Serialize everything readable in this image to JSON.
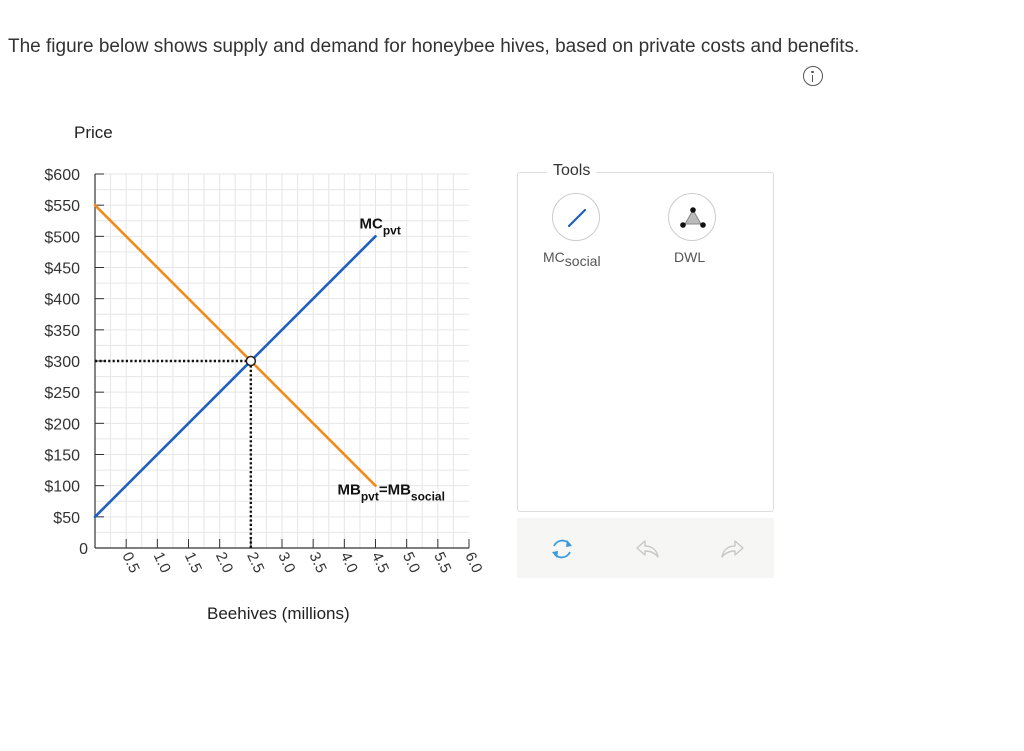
{
  "prompt": {
    "text": "The figure below shows supply and demand for honeybee hives, based on private costs and benefits."
  },
  "info_icon": "info-circle-icon",
  "chart_data": {
    "type": "line",
    "ylabel": "Price",
    "xlabel": "Beehives (millions)",
    "xlim": [
      0,
      6.0
    ],
    "ylim": [
      0,
      600
    ],
    "x_ticks": [
      0.5,
      1.0,
      1.5,
      2.0,
      2.5,
      3.0,
      3.5,
      4.0,
      4.5,
      5.0,
      5.5,
      6.0
    ],
    "x_tick_labels": [
      "0.5",
      "1.0",
      "1.5",
      "2.0",
      "2.5",
      "3.0",
      "3.5",
      "4.0",
      "4.5",
      "5.0",
      "5.5",
      "6.0"
    ],
    "y_ticks": [
      50,
      100,
      150,
      200,
      250,
      300,
      350,
      400,
      450,
      500,
      550,
      600
    ],
    "y_tick_labels": [
      "$50",
      "$100",
      "$150",
      "$200",
      "$250",
      "$300",
      "$350",
      "$400",
      "$450",
      "$500",
      "$550",
      "$600"
    ],
    "origin_label": "0",
    "grid": true,
    "series": [
      {
        "name": "MC_pvt",
        "label_main": "MC",
        "label_sub": "pvt",
        "color": "#1f5fbf",
        "points": [
          [
            0,
            50
          ],
          [
            4.5,
            500
          ]
        ]
      },
      {
        "name": "MB_pvt=MB_social",
        "label_main": "MB",
        "label_sub": "pvt",
        "label_mid": "=MB",
        "label_sub2": "social",
        "color": "#f28a1a",
        "points": [
          [
            0,
            550
          ],
          [
            4.5,
            100
          ]
        ]
      }
    ],
    "equilibrium": {
      "x": 2.5,
      "y": 300
    }
  },
  "tools": {
    "title": "Tools",
    "items": [
      {
        "label_main": "MC",
        "label_sub": "social",
        "icon": "line-tool-icon"
      },
      {
        "label": "DWL",
        "icon": "triangle-area-icon"
      }
    ]
  },
  "actions": {
    "reset_icon": "reset-icon",
    "undo_icon": "undo-icon",
    "redo_icon": "redo-icon"
  }
}
